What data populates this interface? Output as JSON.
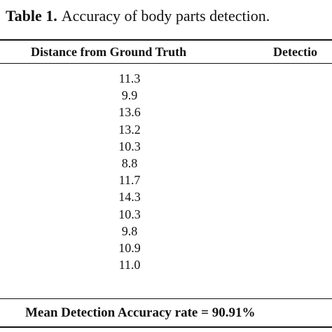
{
  "caption": {
    "label": "Table 1.",
    "text": "Accuracy of body parts detection."
  },
  "table": {
    "headers": [
      "Distance from Ground Truth",
      "Detectio"
    ],
    "distances": [
      "11.3",
      "9.9",
      "13.6",
      "13.2",
      "10.3",
      "8.8",
      "11.7",
      "14.3",
      "10.3",
      "9.8",
      "10.9",
      "11.0"
    ],
    "footer": "Mean Detection Accuracy rate = 90.91%"
  }
}
